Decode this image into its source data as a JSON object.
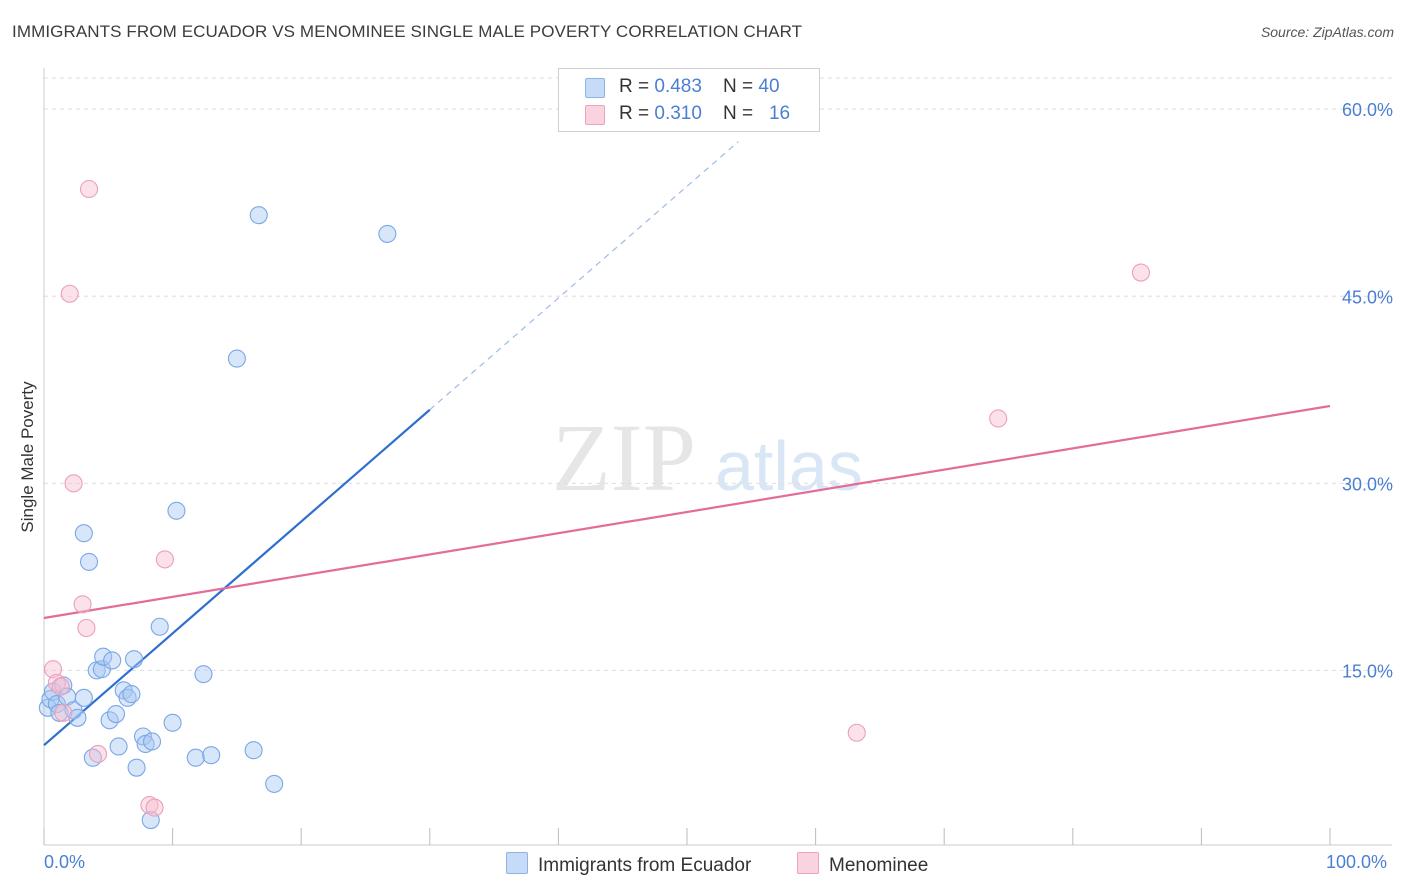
{
  "title": "IMMIGRANTS FROM ECUADOR VS MENOMINEE SINGLE MALE POVERTY CORRELATION CHART",
  "source": "Source: ZipAtlas.com",
  "watermark": {
    "zip": "ZIP",
    "atlas": "atlas"
  },
  "legend_stats": [
    {
      "r_label": "R = ",
      "r_value": "0.483",
      "n_label": "N = ",
      "n_value": "40",
      "color": "#a9c8f2"
    },
    {
      "r_label": "R = ",
      "r_value": "0.310",
      "n_label": "N = ",
      "n_value": "16",
      "color": "#f6bfd0"
    }
  ],
  "chart_data": {
    "type": "scatter",
    "title": "IMMIGRANTS FROM ECUADOR VS MENOMINEE SINGLE MALE POVERTY CORRELATION CHART",
    "xlabel": "",
    "ylabel": "Single Male Poverty",
    "xlim": [
      0,
      100
    ],
    "ylim": [
      1,
      62.5
    ],
    "x_tick_labels": [
      "0.0%",
      "100.0%"
    ],
    "y_ticks": [
      15,
      30,
      45,
      60
    ],
    "y_tick_labels": [
      "15.0%",
      "30.0%",
      "45.0%",
      "60.0%"
    ],
    "grid": true,
    "series": [
      {
        "name": "Immigrants from Ecuador",
        "color": "#a9c8f2",
        "line_color": "#2f6fcf",
        "points": [
          [
            0.3,
            12.0
          ],
          [
            0.5,
            12.7
          ],
          [
            0.7,
            13.3
          ],
          [
            1.0,
            12.3
          ],
          [
            1.2,
            11.6
          ],
          [
            1.5,
            13.8
          ],
          [
            1.8,
            12.9
          ],
          [
            2.3,
            11.8
          ],
          [
            2.6,
            11.2
          ],
          [
            3.1,
            12.8
          ],
          [
            3.1,
            26.0
          ],
          [
            3.5,
            23.7
          ],
          [
            3.8,
            8.0
          ],
          [
            4.1,
            15.0
          ],
          [
            4.5,
            15.1
          ],
          [
            4.6,
            16.1
          ],
          [
            5.1,
            11.0
          ],
          [
            5.3,
            15.8
          ],
          [
            5.6,
            11.5
          ],
          [
            5.8,
            8.9
          ],
          [
            6.2,
            13.4
          ],
          [
            6.5,
            12.8
          ],
          [
            6.8,
            13.1
          ],
          [
            7.0,
            15.9
          ],
          [
            7.2,
            7.2
          ],
          [
            7.7,
            9.7
          ],
          [
            7.9,
            9.1
          ],
          [
            8.3,
            3.0
          ],
          [
            8.4,
            9.3
          ],
          [
            9.0,
            18.5
          ],
          [
            10.0,
            10.8
          ],
          [
            10.3,
            27.8
          ],
          [
            11.8,
            8.0
          ],
          [
            12.4,
            14.7
          ],
          [
            13.0,
            8.2
          ],
          [
            15.0,
            40.0
          ],
          [
            16.3,
            8.6
          ],
          [
            16.7,
            51.5
          ],
          [
            17.9,
            5.9
          ],
          [
            26.7,
            50.0
          ]
        ],
        "trend": {
          "x0": 0,
          "y0": 9.0,
          "x1": 30,
          "y1": 35.9,
          "dashed_to_x": 54,
          "dashed_to_y": 57.4
        }
      },
      {
        "name": "Menominee",
        "color": "#f6bfd0",
        "line_color": "#e26d99",
        "points": [
          [
            0.7,
            15.1
          ],
          [
            1.0,
            14.0
          ],
          [
            1.3,
            13.7
          ],
          [
            1.5,
            11.6
          ],
          [
            2.0,
            45.2
          ],
          [
            2.3,
            30.0
          ],
          [
            3.0,
            20.3
          ],
          [
            3.3,
            18.4
          ],
          [
            3.5,
            53.6
          ],
          [
            4.2,
            8.3
          ],
          [
            8.2,
            4.2
          ],
          [
            8.6,
            4.0
          ],
          [
            9.4,
            23.9
          ],
          [
            63.2,
            10.0
          ],
          [
            74.2,
            35.2
          ],
          [
            85.3,
            46.9
          ]
        ],
        "trend": {
          "x0": 0,
          "y0": 19.2,
          "x1": 100,
          "y1": 36.2
        }
      }
    ]
  }
}
